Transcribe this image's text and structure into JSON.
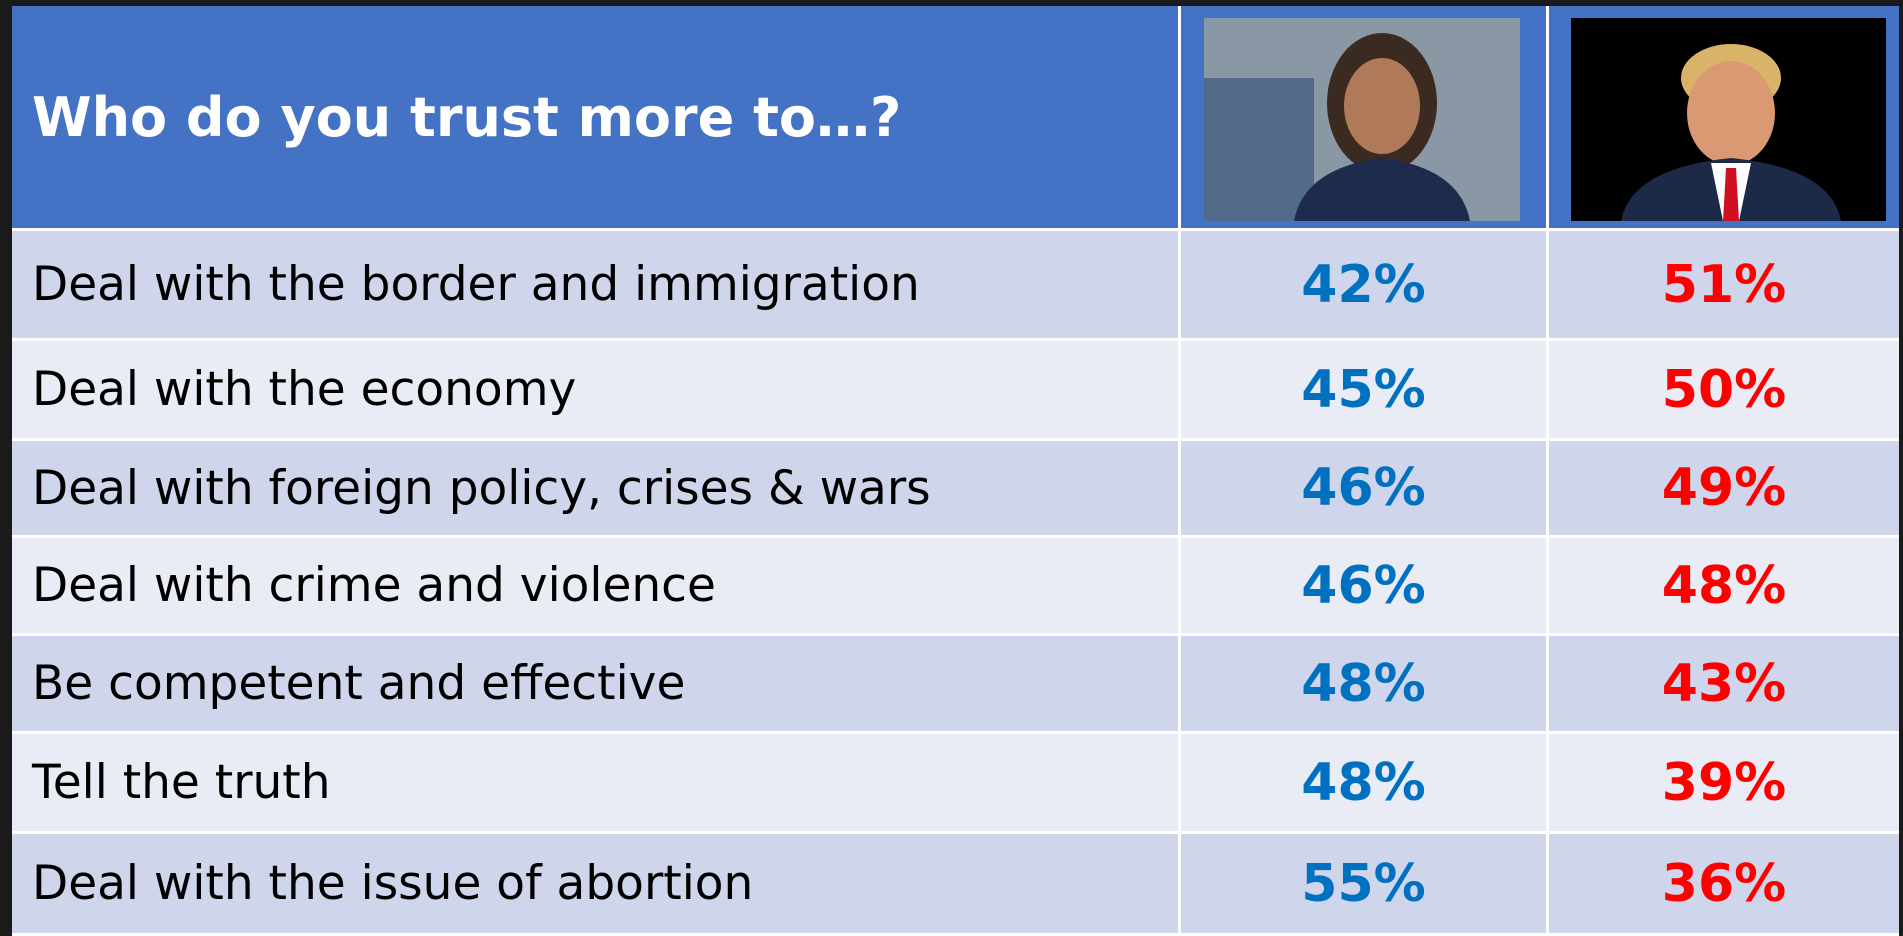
{
  "table": {
    "header": {
      "title": "Who do you trust more to…?"
    },
    "rows": [
      [
        "Deal with the border and immigration",
        "42%",
        "51%"
      ],
      [
        "Deal with the economy",
        "45%",
        "50%"
      ],
      [
        "Deal with foreign policy, crises & wars",
        "46%",
        "49%"
      ],
      [
        "Deal with crime and violence",
        "46%",
        "48%"
      ],
      [
        "Be competent and effective",
        "48%",
        "43%"
      ],
      [
        "Tell the truth",
        "48%",
        "39%"
      ],
      [
        "Deal with the issue of abortion",
        "55%",
        "36%"
      ]
    ]
  }
}
